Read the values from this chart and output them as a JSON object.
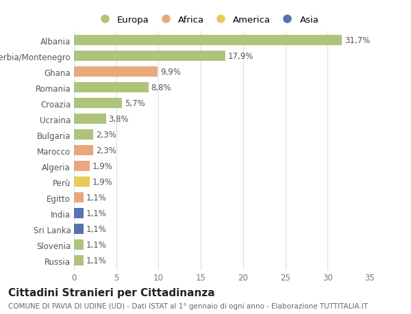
{
  "categories": [
    "Albania",
    "Serbia/Montenegro",
    "Ghana",
    "Romania",
    "Croazia",
    "Ucraina",
    "Bulgaria",
    "Marocco",
    "Algeria",
    "Perù",
    "Egitto",
    "India",
    "Sri Lanka",
    "Slovenia",
    "Russia"
  ],
  "values": [
    31.7,
    17.9,
    9.9,
    8.8,
    5.7,
    3.8,
    2.3,
    2.3,
    1.9,
    1.9,
    1.1,
    1.1,
    1.1,
    1.1,
    1.1
  ],
  "labels": [
    "31,7%",
    "17,9%",
    "9,9%",
    "8,8%",
    "5,7%",
    "3,8%",
    "2,3%",
    "2,3%",
    "1,9%",
    "1,9%",
    "1,1%",
    "1,1%",
    "1,1%",
    "1,1%",
    "1,1%"
  ],
  "continents": [
    "Europa",
    "Europa",
    "Africa",
    "Europa",
    "Europa",
    "Europa",
    "Europa",
    "Africa",
    "Africa",
    "America",
    "Africa",
    "Asia",
    "Asia",
    "Europa",
    "Europa"
  ],
  "colors": {
    "Europa": "#adc47a",
    "Africa": "#e8a87c",
    "America": "#e8cc5a",
    "Asia": "#5872b0"
  },
  "xlim": [
    0,
    35
  ],
  "xticks": [
    0,
    5,
    10,
    15,
    20,
    25,
    30,
    35
  ],
  "title": "Cittadini Stranieri per Cittadinanza",
  "subtitle": "COMUNE DI PAVIA DI UDINE (UD) - Dati ISTAT al 1° gennaio di ogni anno - Elaborazione TUTTITALIA.IT",
  "background_color": "#ffffff",
  "grid_color": "#dddddd",
  "bar_height": 0.65,
  "label_fontsize": 8.5,
  "tick_fontsize": 8.5,
  "title_fontsize": 11,
  "subtitle_fontsize": 7.5,
  "legend_order": [
    "Europa",
    "Africa",
    "America",
    "Asia"
  ]
}
